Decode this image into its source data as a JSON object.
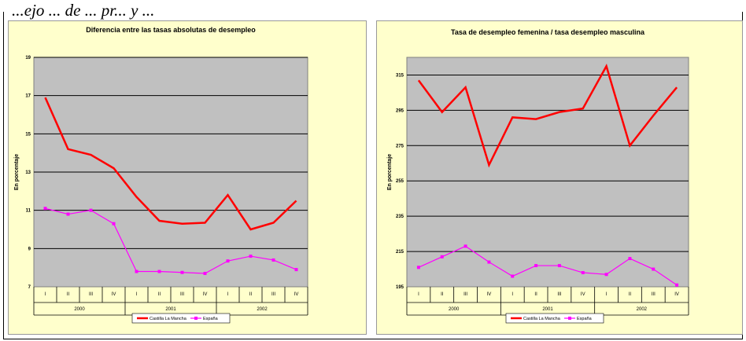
{
  "header": {
    "text": "...ejo ... de ... pr... y ..."
  },
  "chart_data": [
    {
      "type": "line",
      "title": "Diferencia entre las tasas absolutas de desempleo",
      "ylabel": "En porcentaje",
      "xlabel": "",
      "ylim": [
        7,
        19
      ],
      "yticks": [
        7,
        9,
        11,
        13,
        15,
        17,
        19
      ],
      "categories": [
        "I",
        "II",
        "III",
        "IV",
        "I",
        "II",
        "III",
        "IV",
        "I",
        "II",
        "III",
        "IV"
      ],
      "years": [
        "2000",
        "2001",
        "2002"
      ],
      "grid": true,
      "legend": "bottom",
      "series": [
        {
          "name": "Castilla La Mancha",
          "color": "#ff0000",
          "marker": "none",
          "values": [
            16.9,
            14.2,
            13.9,
            13.2,
            11.7,
            10.45,
            10.3,
            10.35,
            11.8,
            10.0,
            10.35,
            11.5
          ]
        },
        {
          "name": "España",
          "color": "#ff00ff",
          "marker": "square",
          "values": [
            11.1,
            10.8,
            11.0,
            10.3,
            7.8,
            7.8,
            7.75,
            7.7,
            8.35,
            8.6,
            8.4,
            7.9
          ]
        }
      ]
    },
    {
      "type": "line",
      "title": "Tasa de desempleo femenina / tasa desempleo masculina",
      "ylabel": "En porcentaje",
      "xlabel": "",
      "ylim": [
        195,
        325
      ],
      "yticks": [
        195,
        215,
        235,
        255,
        275,
        295,
        315
      ],
      "categories": [
        "I",
        "II",
        "III",
        "IV",
        "I",
        "II",
        "III",
        "IV",
        "I",
        "II",
        "III",
        "IV"
      ],
      "years": [
        "2000",
        "2001",
        "2002"
      ],
      "grid": true,
      "legend": "bottom",
      "series": [
        {
          "name": "Castilla La Mancha",
          "color": "#ff0000",
          "marker": "none",
          "values": [
            312,
            294,
            308,
            264,
            291,
            290,
            294,
            296,
            320,
            275,
            292,
            308
          ]
        },
        {
          "name": "España",
          "color": "#ff00ff",
          "marker": "square",
          "values": [
            206,
            212,
            218,
            209,
            201,
            207,
            207,
            203,
            202,
            211,
            205,
            196
          ]
        }
      ]
    }
  ]
}
